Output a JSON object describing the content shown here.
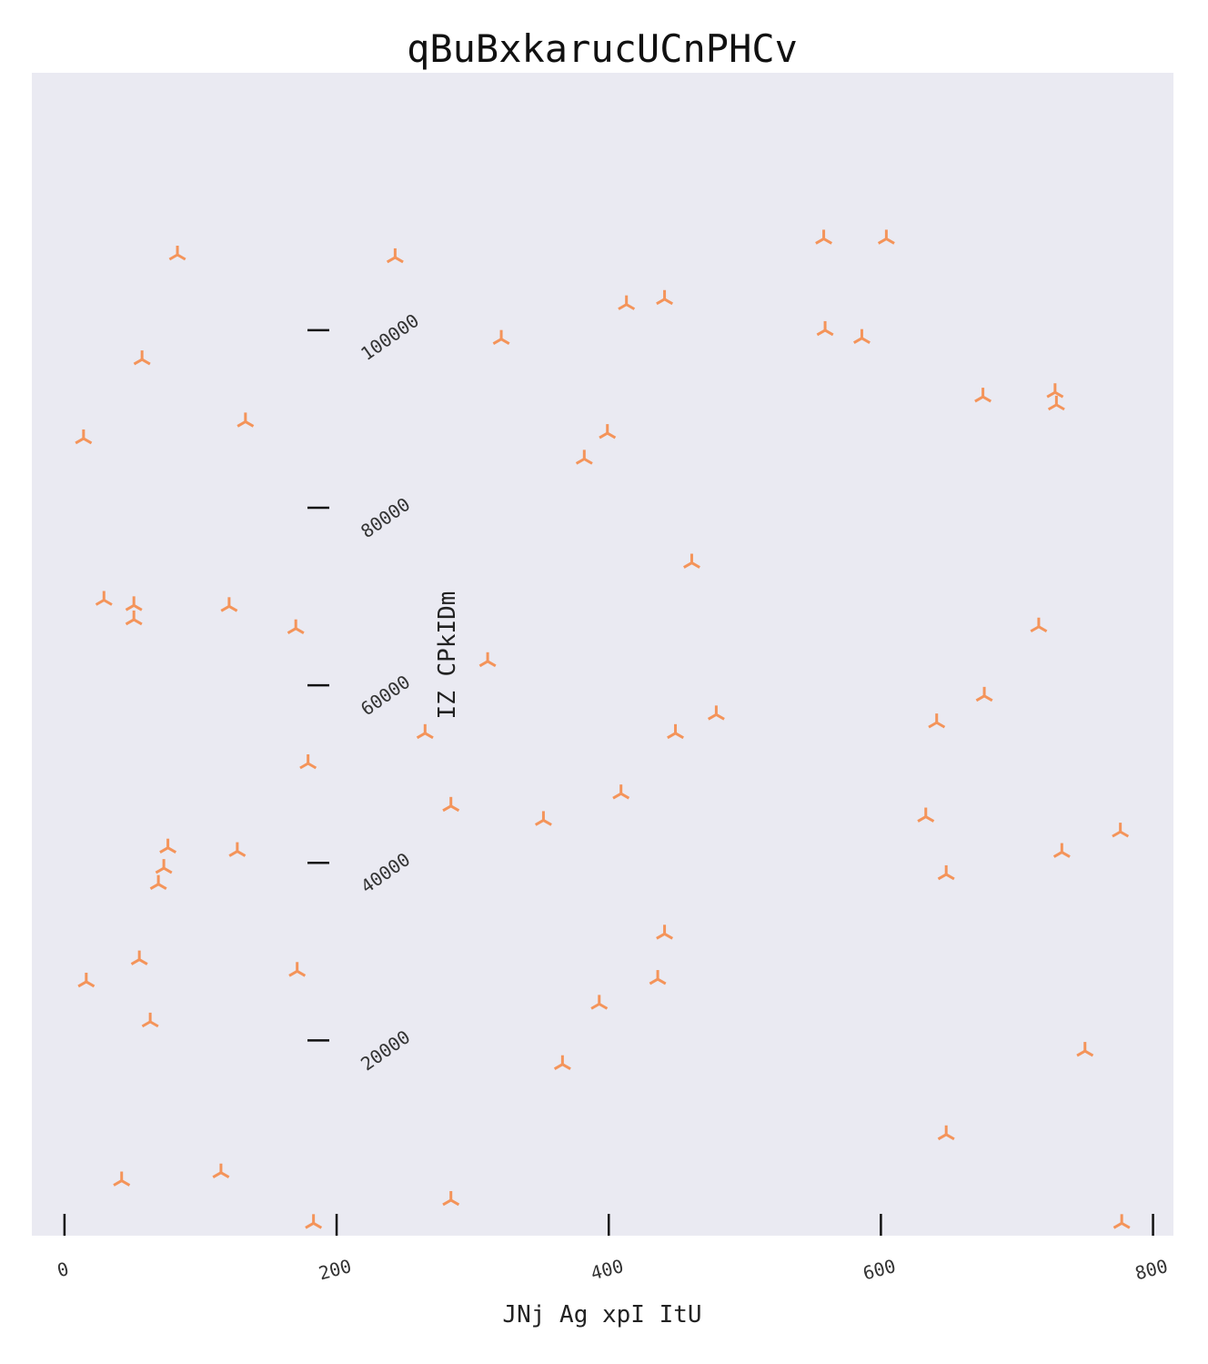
{
  "colors": {
    "plot_bg": "#eaeaf2",
    "marker": "#f4945a",
    "axis": "#111111",
    "page_bg": "#ffffff"
  },
  "chart_data": {
    "type": "scatter",
    "title": "qBuBxkarucUCnPHCv",
    "xlabel": "JNj Ag xpI ItU",
    "ylabel": "IZ CPkIDm",
    "xlim": [
      -24,
      815
    ],
    "ylim": [
      -2000,
      129000
    ],
    "x_ticks": [
      0,
      200,
      400,
      600,
      800
    ],
    "y_ticks": [
      20000,
      40000,
      60000,
      80000,
      100000
    ],
    "x_tick_labels": [
      "0",
      "200",
      "400",
      "600",
      "800"
    ],
    "y_tick_labels": [
      "20000",
      "40000",
      "60000",
      "80000",
      "100000"
    ],
    "grid": false,
    "marker": "tri_down",
    "series": [
      {
        "points": [
          [
            83,
            108500
          ],
          [
            243,
            108200
          ],
          [
            558,
            110300
          ],
          [
            604,
            110300
          ],
          [
            413,
            102900
          ],
          [
            441,
            103500
          ],
          [
            559,
            100000
          ],
          [
            586,
            99100
          ],
          [
            321,
            99000
          ],
          [
            57,
            96700
          ],
          [
            675,
            92500
          ],
          [
            728,
            93000
          ],
          [
            729,
            91600
          ],
          [
            133,
            89700
          ],
          [
            14,
            87800
          ],
          [
            399,
            88400
          ],
          [
            382,
            85500
          ],
          [
            461,
            73800
          ],
          [
            29,
            69600
          ],
          [
            51,
            69000
          ],
          [
            121,
            68900
          ],
          [
            51,
            67400
          ],
          [
            170,
            66400
          ],
          [
            716,
            66600
          ],
          [
            311,
            62700
          ],
          [
            676,
            58800
          ],
          [
            479,
            56700
          ],
          [
            265,
            54600
          ],
          [
            641,
            55800
          ],
          [
            449,
            54600
          ],
          [
            179,
            51200
          ],
          [
            409,
            47800
          ],
          [
            284,
            46400
          ],
          [
            352,
            44800
          ],
          [
            633,
            45200
          ],
          [
            776,
            43500
          ],
          [
            76,
            41700
          ],
          [
            127,
            41300
          ],
          [
            733,
            41200
          ],
          [
            73,
            39400
          ],
          [
            69,
            37600
          ],
          [
            648,
            38700
          ],
          [
            441,
            32000
          ],
          [
            55,
            29100
          ],
          [
            171,
            27800
          ],
          [
            16,
            26600
          ],
          [
            436,
            26900
          ],
          [
            393,
            24100
          ],
          [
            63,
            22100
          ],
          [
            366,
            17300
          ],
          [
            750,
            18800
          ],
          [
            648,
            9400
          ],
          [
            115,
            5100
          ],
          [
            42,
            4200
          ],
          [
            284,
            2000
          ],
          [
            183,
            -600
          ],
          [
            777,
            -600
          ]
        ]
      }
    ]
  }
}
